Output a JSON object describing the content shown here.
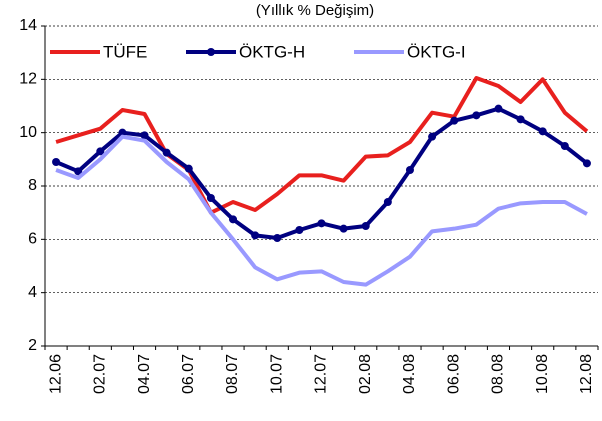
{
  "chart_data": {
    "type": "line",
    "title": "(Yıllık % Değişim)",
    "categories": [
      "12.06",
      null,
      "02.07",
      null,
      "04.07",
      null,
      "06.07",
      null,
      "08.07",
      null,
      "10.07",
      null,
      "12.07",
      null,
      "02.08",
      null,
      "04.08",
      null,
      "06.08",
      null,
      "08.08",
      null,
      "10.08",
      null,
      "12.08"
    ],
    "series": [
      {
        "name": "TÜFE",
        "color": "#e8201e",
        "marker": false,
        "values": [
          9.65,
          9.9,
          10.15,
          10.85,
          10.7,
          9.2,
          8.6,
          7.0,
          7.4,
          7.1,
          7.7,
          8.4,
          8.4,
          8.2,
          9.1,
          9.15,
          9.65,
          10.75,
          10.6,
          12.05,
          11.75,
          11.15,
          12.0,
          10.75,
          10.05
        ]
      },
      {
        "name": "ÖKTG-H",
        "color": "#000080",
        "marker": true,
        "values": [
          8.9,
          8.55,
          9.3,
          10.0,
          9.9,
          9.25,
          8.65,
          7.55,
          6.75,
          6.15,
          6.05,
          6.35,
          6.6,
          6.4,
          6.5,
          7.4,
          8.6,
          9.85,
          10.45,
          10.65,
          10.9,
          10.5,
          10.05,
          9.5,
          8.85
        ]
      },
      {
        "name": "ÖKTG-I",
        "color": "#9999ff",
        "marker": false,
        "values": [
          8.6,
          8.3,
          9.0,
          9.85,
          9.7,
          8.9,
          8.25,
          7.0,
          6.0,
          4.95,
          4.5,
          4.75,
          4.8,
          4.4,
          4.3,
          4.8,
          5.35,
          6.3,
          6.4,
          6.55,
          7.15,
          7.35,
          7.4,
          7.4,
          6.95
        ]
      }
    ],
    "ylim": [
      2,
      14
    ],
    "yticks": [
      2,
      4,
      6,
      8,
      10,
      12,
      14
    ],
    "grid": true,
    "legend": "top-left"
  }
}
